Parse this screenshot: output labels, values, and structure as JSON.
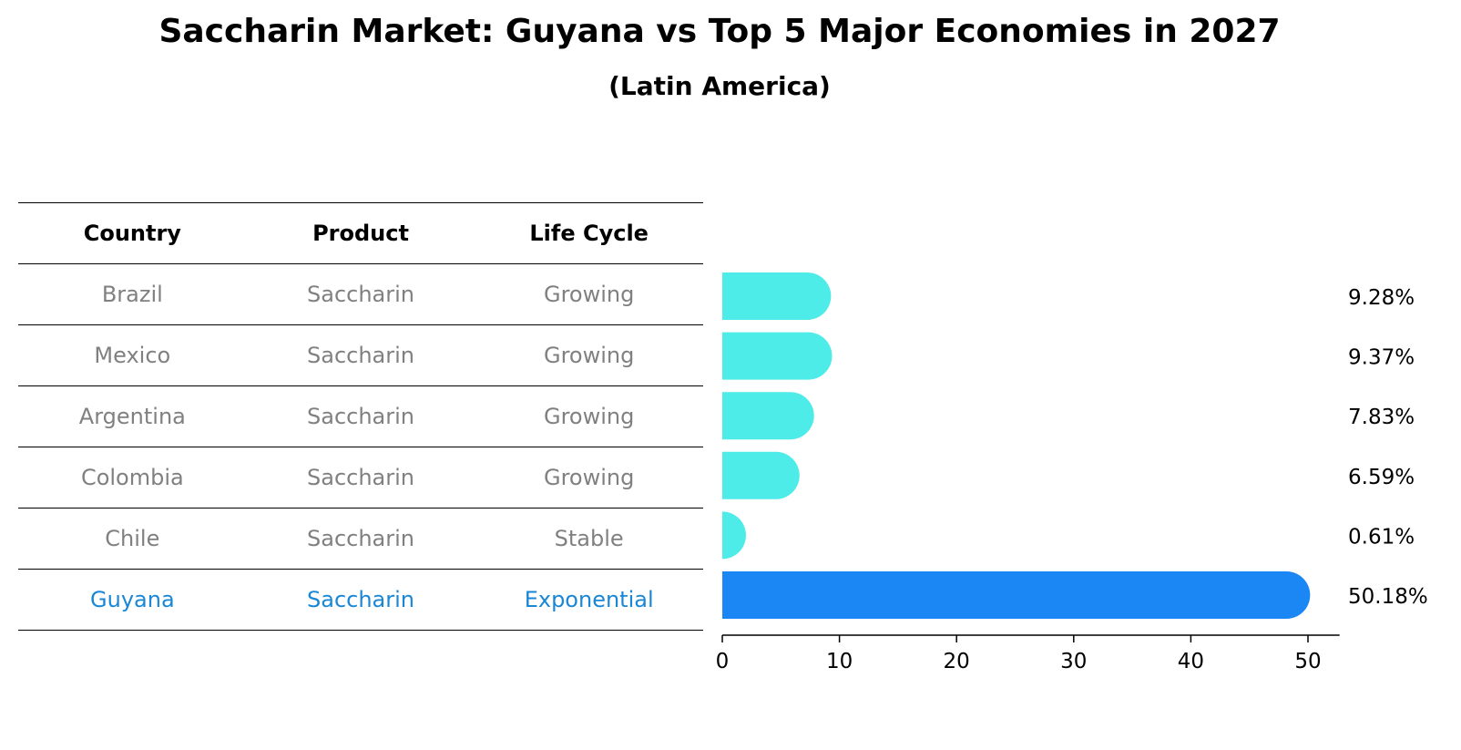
{
  "title": "Saccharin Market: Guyana vs Top 5 Major Economies in 2027",
  "subtitle": "(Latin America)",
  "table": {
    "headers": [
      "Country",
      "Product",
      "Life Cycle"
    ],
    "rows": [
      {
        "country": "Brazil",
        "product": "Saccharin",
        "life_cycle": "Growing"
      },
      {
        "country": "Mexico",
        "product": "Saccharin",
        "life_cycle": "Growing"
      },
      {
        "country": "Argentina",
        "product": "Saccharin",
        "life_cycle": "Growing"
      },
      {
        "country": "Colombia",
        "product": "Saccharin",
        "life_cycle": "Growing"
      },
      {
        "country": "Chile",
        "product": "Saccharin",
        "life_cycle": "Stable"
      },
      {
        "country": "Guyana",
        "product": "Saccharin",
        "life_cycle": "Exponential"
      }
    ]
  },
  "colors": {
    "bar": "#4eece8",
    "highlight_bar": "#1a87f5",
    "highlight_text": "#1a87d6",
    "muted_text": "#808080"
  },
  "chart_data": {
    "type": "bar",
    "orientation": "horizontal",
    "categories": [
      "Brazil",
      "Mexico",
      "Argentina",
      "Colombia",
      "Chile",
      "Guyana"
    ],
    "values": [
      9.28,
      9.37,
      7.83,
      6.59,
      0.61,
      50.18
    ],
    "labels": [
      "9.28%",
      "9.37%",
      "7.83%",
      "6.59%",
      "0.61%",
      "50.18%"
    ],
    "highlight": "Guyana",
    "xlim": [
      0,
      52.7
    ],
    "xticks": [
      0,
      10,
      20,
      30,
      40,
      50
    ],
    "xlabel": "",
    "ylabel": ""
  }
}
